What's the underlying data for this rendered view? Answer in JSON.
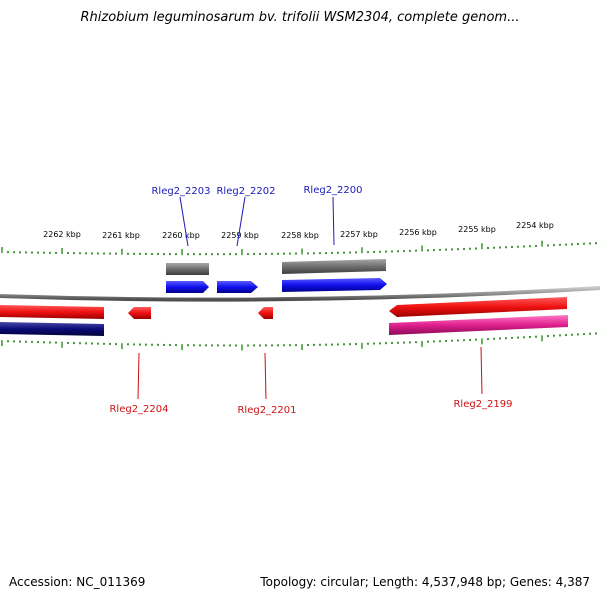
{
  "title": "Rhizobium leguminosarum bv. trifolii WSM2304, complete genom...",
  "accession_label": "Accession: NC_011369",
  "summary_label": "Topology: circular; Length: 4,537,948 bp; Genes: 4,387",
  "colors": {
    "backbone": "#8f8f8f",
    "ticks": "#2e8b22",
    "forward_cds": "#1010ee",
    "forward_gene": "#6e6e6e",
    "reverse_cds": "#ee1111",
    "reverse_gene_navy": "#0b0b78",
    "reverse_gene_pink": "#e0208e",
    "forward_label": "#1a1ab8",
    "reverse_label": "#cc1111"
  },
  "scale_labels": [
    "2262 kbp",
    "2261 kbp",
    "2260 kbp",
    "2259 kbp",
    "2258 kbp",
    "2257 kbp",
    "2256 kbp",
    "2255 kbp",
    "2254 kbp"
  ],
  "gene_labels": [
    {
      "text": "Rleg2_2203",
      "strand": "forward"
    },
    {
      "text": "Rleg2_2202",
      "strand": "forward"
    },
    {
      "text": "Rleg2_2200",
      "strand": "forward"
    },
    {
      "text": "Rleg2_2204",
      "strand": "reverse"
    },
    {
      "text": "Rleg2_2201",
      "strand": "reverse"
    },
    {
      "text": "Rleg2_2199",
      "strand": "reverse"
    }
  ]
}
